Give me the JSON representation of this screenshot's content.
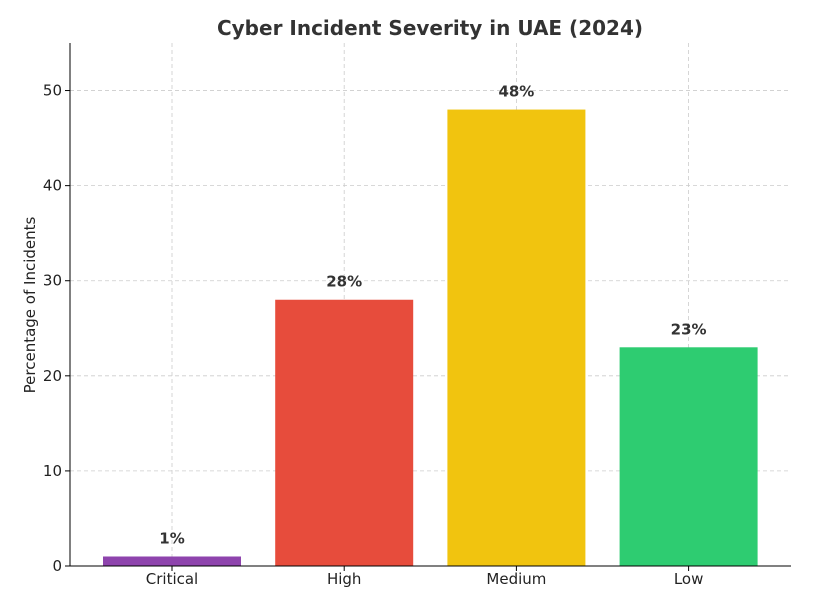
{
  "chart_data": {
    "type": "bar",
    "title": "Cyber Incident Severity in UAE (2024)",
    "xlabel": "",
    "ylabel": "Percentage of Incidents",
    "categories": [
      "Critical",
      "High",
      "Medium",
      "Low"
    ],
    "values": [
      1,
      28,
      48,
      23
    ],
    "data_labels": [
      "1%",
      "28%",
      "48%",
      "23%"
    ],
    "colors": [
      "#8e44ad",
      "#e74c3c",
      "#f1c40f",
      "#2ecc71"
    ],
    "ylim": [
      0,
      55
    ],
    "yticks": [
      0,
      10,
      20,
      30,
      40,
      50
    ],
    "ytick_labels": [
      "0",
      "10",
      "20",
      "30",
      "40",
      "50"
    ],
    "grid": true,
    "axis_color": "#000000",
    "grid_color": "#cccccc"
  }
}
